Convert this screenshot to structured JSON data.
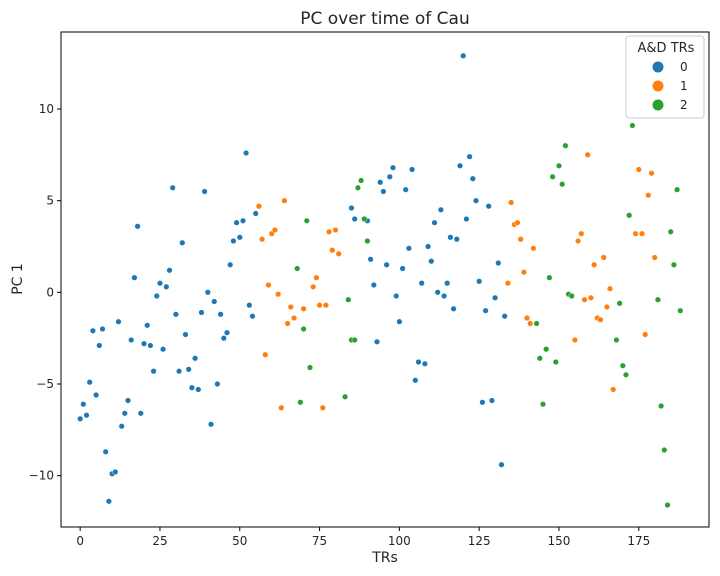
{
  "chart_data": {
    "type": "scatter",
    "title": "PC over time of Cau",
    "xlabel": "TRs",
    "ylabel": "PC 1",
    "xlim": [
      -6,
      197
    ],
    "ylim": [
      -12.8,
      14.2
    ],
    "xticks": [
      0,
      25,
      50,
      75,
      100,
      125,
      150,
      175
    ],
    "yticks": [
      -10,
      -5,
      0,
      5,
      10
    ],
    "grid": false,
    "legend": {
      "title": "A&D TRs",
      "position": "top-right",
      "entries": [
        "0",
        "1",
        "2"
      ]
    },
    "colors": {
      "0": "#1f77b4",
      "1": "#ff7f0e",
      "2": "#2ca02c"
    },
    "series": [
      {
        "name": "0",
        "color": "#1f77b4",
        "points": [
          [
            0,
            -6.9
          ],
          [
            1,
            -6.1
          ],
          [
            2,
            -6.7
          ],
          [
            3,
            -4.9
          ],
          [
            4,
            -2.1
          ],
          [
            5,
            -5.6
          ],
          [
            6,
            -2.9
          ],
          [
            7,
            -2.0
          ],
          [
            8,
            -8.7
          ],
          [
            9,
            -11.4
          ],
          [
            10,
            -9.9
          ],
          [
            11,
            -9.8
          ],
          [
            12,
            -1.6
          ],
          [
            13,
            -7.3
          ],
          [
            14,
            -6.6
          ],
          [
            15,
            -5.9
          ],
          [
            16,
            -2.6
          ],
          [
            17,
            0.8
          ],
          [
            18,
            3.6
          ],
          [
            19,
            -6.6
          ],
          [
            20,
            -2.8
          ],
          [
            21,
            -1.8
          ],
          [
            22,
            -2.9
          ],
          [
            23,
            -4.3
          ],
          [
            24,
            -0.2
          ],
          [
            25,
            0.5
          ],
          [
            26,
            -3.1
          ],
          [
            27,
            0.3
          ],
          [
            28,
            1.2
          ],
          [
            29,
            5.7
          ],
          [
            30,
            -1.2
          ],
          [
            31,
            -4.3
          ],
          [
            32,
            2.7
          ],
          [
            33,
            -2.3
          ],
          [
            34,
            -4.2
          ],
          [
            35,
            -5.2
          ],
          [
            36,
            -3.6
          ],
          [
            37,
            -5.3
          ],
          [
            38,
            -1.1
          ],
          [
            39,
            5.5
          ],
          [
            40,
            0.0
          ],
          [
            41,
            -7.2
          ],
          [
            42,
            -0.5
          ],
          [
            43,
            -5.0
          ],
          [
            44,
            -1.2
          ],
          [
            45,
            -2.5
          ],
          [
            46,
            -2.2
          ],
          [
            47,
            1.5
          ],
          [
            48,
            2.8
          ],
          [
            49,
            3.8
          ],
          [
            50,
            3.0
          ],
          [
            51,
            3.9
          ],
          [
            52,
            7.6
          ],
          [
            53,
            -0.7
          ],
          [
            54,
            -1.3
          ],
          [
            55,
            4.3
          ],
          [
            85,
            4.6
          ],
          [
            86,
            4.0
          ],
          [
            90,
            3.9
          ],
          [
            91,
            1.8
          ],
          [
            92,
            0.4
          ],
          [
            93,
            -2.7
          ],
          [
            94,
            6.0
          ],
          [
            95,
            5.5
          ],
          [
            96,
            1.5
          ],
          [
            97,
            6.3
          ],
          [
            98,
            6.8
          ],
          [
            99,
            -0.2
          ],
          [
            100,
            -1.6
          ],
          [
            101,
            1.3
          ],
          [
            102,
            5.6
          ],
          [
            103,
            2.4
          ],
          [
            104,
            6.7
          ],
          [
            105,
            -4.8
          ],
          [
            106,
            -3.8
          ],
          [
            107,
            0.5
          ],
          [
            108,
            -3.9
          ],
          [
            109,
            2.5
          ],
          [
            110,
            1.7
          ],
          [
            111,
            3.8
          ],
          [
            112,
            0.0
          ],
          [
            113,
            4.5
          ],
          [
            114,
            -0.2
          ],
          [
            115,
            0.5
          ],
          [
            116,
            3.0
          ],
          [
            117,
            -0.9
          ],
          [
            118,
            2.9
          ],
          [
            119,
            6.9
          ],
          [
            120,
            12.9
          ],
          [
            121,
            4.0
          ],
          [
            122,
            7.4
          ],
          [
            123,
            6.2
          ],
          [
            124,
            5.0
          ],
          [
            125,
            0.6
          ],
          [
            126,
            -6.0
          ],
          [
            127,
            -1.0
          ],
          [
            128,
            4.7
          ],
          [
            129,
            -5.9
          ],
          [
            130,
            -0.3
          ],
          [
            131,
            1.6
          ],
          [
            132,
            -9.4
          ],
          [
            133,
            -1.3
          ]
        ]
      },
      {
        "name": "1",
        "color": "#ff7f0e",
        "points": [
          [
            56,
            4.7
          ],
          [
            57,
            2.9
          ],
          [
            58,
            -3.4
          ],
          [
            59,
            0.4
          ],
          [
            60,
            3.2
          ],
          [
            61,
            3.4
          ],
          [
            62,
            -0.1
          ],
          [
            63,
            -6.3
          ],
          [
            64,
            5.0
          ],
          [
            65,
            -1.7
          ],
          [
            66,
            -0.8
          ],
          [
            67,
            -1.4
          ],
          [
            70,
            -0.9
          ],
          [
            73,
            0.3
          ],
          [
            74,
            0.8
          ],
          [
            75,
            -0.7
          ],
          [
            76,
            -6.3
          ],
          [
            77,
            -0.7
          ],
          [
            78,
            3.3
          ],
          [
            79,
            2.3
          ],
          [
            80,
            3.4
          ],
          [
            81,
            2.1
          ],
          [
            134,
            0.5
          ],
          [
            135,
            4.9
          ],
          [
            136,
            3.7
          ],
          [
            137,
            3.8
          ],
          [
            138,
            2.9
          ],
          [
            139,
            1.1
          ],
          [
            140,
            -1.4
          ],
          [
            141,
            -1.7
          ],
          [
            142,
            2.4
          ],
          [
            155,
            -2.6
          ],
          [
            156,
            2.8
          ],
          [
            157,
            3.2
          ],
          [
            158,
            -0.4
          ],
          [
            159,
            7.5
          ],
          [
            160,
            -0.3
          ],
          [
            161,
            1.5
          ],
          [
            162,
            -1.4
          ],
          [
            163,
            -1.5
          ],
          [
            164,
            1.9
          ],
          [
            165,
            -0.8
          ],
          [
            166,
            0.2
          ],
          [
            167,
            -5.3
          ],
          [
            174,
            3.2
          ],
          [
            175,
            6.7
          ],
          [
            176,
            3.2
          ],
          [
            177,
            -2.3
          ],
          [
            178,
            5.3
          ],
          [
            179,
            6.5
          ],
          [
            180,
            1.9
          ]
        ]
      },
      {
        "name": "2",
        "color": "#2ca02c",
        "points": [
          [
            68,
            1.3
          ],
          [
            69,
            -6.0
          ],
          [
            70,
            -2.0
          ],
          [
            71,
            3.9
          ],
          [
            72,
            -4.1
          ],
          [
            83,
            -5.7
          ],
          [
            84,
            -0.4
          ],
          [
            85,
            -2.6
          ],
          [
            86,
            -2.6
          ],
          [
            87,
            5.7
          ],
          [
            88,
            6.1
          ],
          [
            89,
            4.0
          ],
          [
            90,
            2.8
          ],
          [
            143,
            -1.7
          ],
          [
            144,
            -3.6
          ],
          [
            145,
            -6.1
          ],
          [
            146,
            -3.1
          ],
          [
            147,
            0.8
          ],
          [
            148,
            6.3
          ],
          [
            149,
            -3.8
          ],
          [
            150,
            6.9
          ],
          [
            151,
            5.9
          ],
          [
            152,
            8.0
          ],
          [
            153,
            -0.1
          ],
          [
            154,
            -0.2
          ],
          [
            168,
            -2.6
          ],
          [
            169,
            -0.6
          ],
          [
            170,
            -4.0
          ],
          [
            171,
            -4.5
          ],
          [
            172,
            4.2
          ],
          [
            173,
            9.1
          ],
          [
            181,
            -0.4
          ],
          [
            182,
            -6.2
          ],
          [
            183,
            -8.6
          ],
          [
            184,
            -11.6
          ],
          [
            185,
            3.3
          ],
          [
            186,
            1.5
          ],
          [
            187,
            5.6
          ],
          [
            188,
            -1.0
          ]
        ]
      }
    ]
  }
}
